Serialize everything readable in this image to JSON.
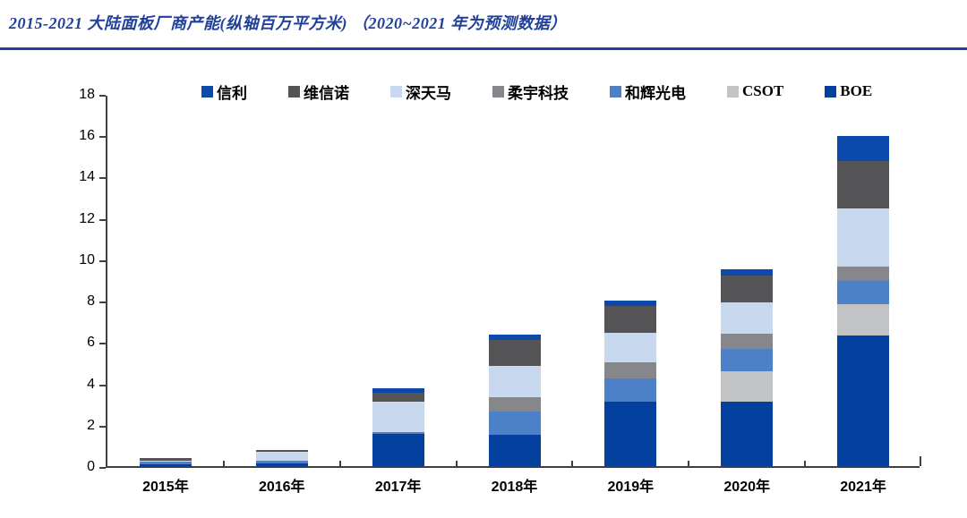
{
  "page": {
    "title": "2015-2021 大陆面板厂商产能(纵轴百万平方米) （2020~2021 年为预测数据）"
  },
  "colors": {
    "title_text": "#20409A",
    "title_rule": "#1F3F9C",
    "axis": "#404040",
    "background": "#FFFFFF"
  },
  "chart_data": {
    "type": "bar",
    "stacked": true,
    "title": "",
    "xlabel": "",
    "ylabel": "",
    "categories": [
      "2015年",
      "2016年",
      "2017年",
      "2018年",
      "2019年",
      "2020年",
      "2021年"
    ],
    "series": [
      {
        "name": "BOE",
        "color": "#04419F",
        "values": [
          0.1,
          0.15,
          1.55,
          1.5,
          3.1,
          3.1,
          6.3
        ]
      },
      {
        "name": "CSOT",
        "color": "#C2C3C5",
        "values": [
          0,
          0,
          0,
          0,
          0,
          1.5,
          1.55
        ]
      },
      {
        "name": "和辉光电",
        "color": "#4E80C8",
        "values": [
          0.1,
          0.1,
          0.1,
          1.15,
          1.15,
          1.05,
          1.1
        ]
      },
      {
        "name": "柔宇科技",
        "color": "#85878B",
        "values": [
          0,
          0,
          0,
          0.7,
          0.75,
          0.75,
          0.7
        ]
      },
      {
        "name": "深天马",
        "color": "#C8D8EF",
        "values": [
          0.05,
          0.45,
          1.45,
          1.5,
          1.45,
          1.5,
          2.8
        ]
      },
      {
        "name": "维信诺",
        "color": "#545456",
        "values": [
          0.15,
          0.1,
          0.45,
          1.25,
          1.3,
          1.3,
          2.3
        ]
      },
      {
        "name": "信利",
        "color": "#0B4AAB",
        "values": [
          0,
          0,
          0.2,
          0.25,
          0.25,
          0.3,
          1.2
        ]
      }
    ],
    "totals": [
      0.4,
      0.8,
      3.75,
      6.35,
      8.0,
      9.5,
      15.95
    ],
    "legend": [
      "信利",
      "维信诺",
      "深天马",
      "柔宇科技",
      "和辉光电",
      "CSOT",
      "BOE"
    ],
    "legend_position": "top",
    "ylim": [
      0,
      18
    ],
    "ytick_step": 2,
    "yticks": [
      0,
      2,
      4,
      6,
      8,
      10,
      12,
      14,
      16,
      18
    ],
    "grid": false
  }
}
